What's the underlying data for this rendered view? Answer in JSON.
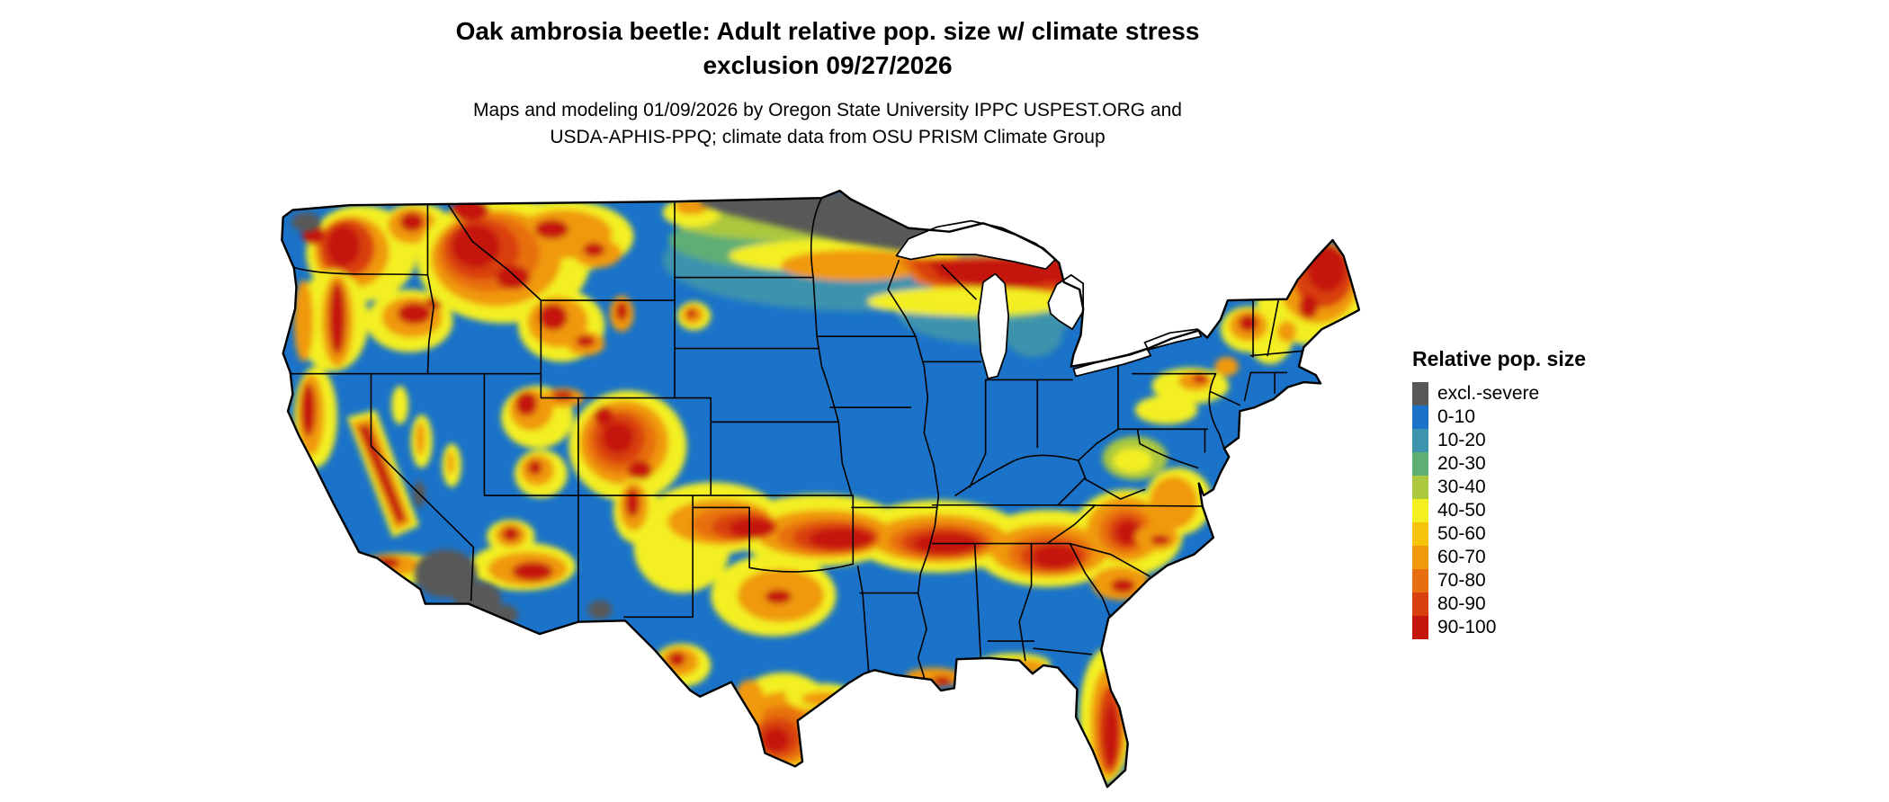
{
  "header": {
    "title_line1": "Oak ambrosia beetle: Adult relative pop. size w/ climate stress",
    "title_line2": "exclusion 09/27/2026",
    "subtitle_line1": "Maps and modeling 01/09/2026 by Oregon State University IPPC USPEST.ORG and",
    "subtitle_line2": "USDA-APHIS-PPQ; climate data from OSU PRISM Climate Group"
  },
  "map": {
    "region": "contiguous United States",
    "base_class": "0-10",
    "water_color": "#ffffff",
    "boundary_color": "#000000"
  },
  "legend": {
    "title": "Relative pop. size",
    "entries": [
      {
        "label": "excl.-severe",
        "color": "#585858"
      },
      {
        "label": "0-10",
        "color": "#1a73c8"
      },
      {
        "label": "10-20",
        "color": "#3e93ad"
      },
      {
        "label": "20-30",
        "color": "#5fae74"
      },
      {
        "label": "30-40",
        "color": "#abc83e"
      },
      {
        "label": "40-50",
        "color": "#f3ef21"
      },
      {
        "label": "50-60",
        "color": "#f5c30a"
      },
      {
        "label": "60-70",
        "color": "#f0990b"
      },
      {
        "label": "70-80",
        "color": "#e76f10"
      },
      {
        "label": "80-90",
        "color": "#d9400f"
      },
      {
        "label": "90-100",
        "color": "#c5160d"
      }
    ]
  }
}
